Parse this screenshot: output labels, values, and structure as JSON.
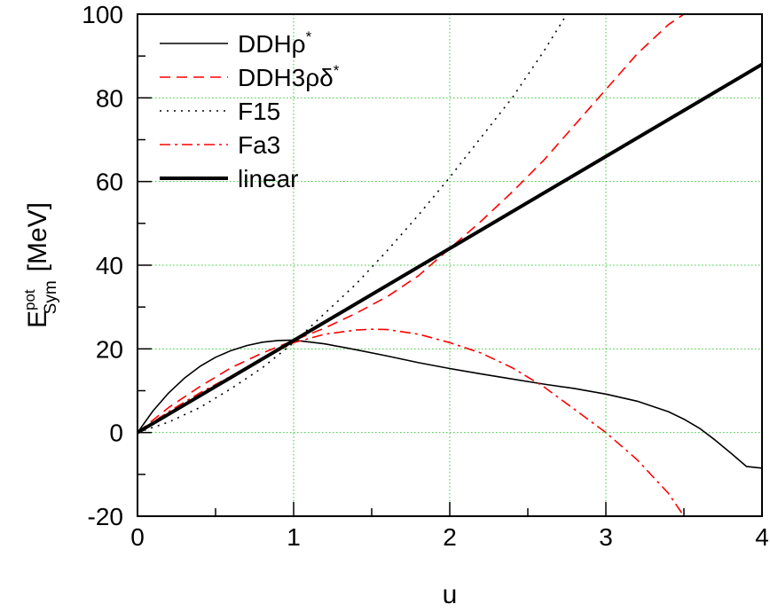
{
  "chart_data": {
    "type": "line",
    "title": "",
    "xlabel": "u",
    "ylabel": {
      "main": "E",
      "sup": "pot",
      "sub": "Sym",
      "unit": "[MeV]"
    },
    "xlim": [
      0,
      4
    ],
    "ylim": [
      -20,
      100
    ],
    "xticks": [
      0,
      1,
      2,
      3,
      4
    ],
    "xtick_labels": [
      "0",
      "1",
      "2",
      "3",
      "4"
    ],
    "yticks": [
      -20,
      0,
      20,
      40,
      60,
      80,
      100
    ],
    "ytick_labels": [
      "-20",
      "0",
      "20",
      "40",
      "60",
      "80",
      "100"
    ],
    "grid": true,
    "legend_position": "top-left",
    "series": [
      {
        "name": "DDHρ*",
        "legend_main": "DDHρ",
        "legend_sup": "*",
        "style": "solid",
        "width": 1.6,
        "color": "#000000",
        "x": [
          0,
          0.1,
          0.2,
          0.3,
          0.4,
          0.5,
          0.6,
          0.7,
          0.8,
          0.9,
          1.0,
          1.2,
          1.4,
          1.6,
          1.8,
          2.0,
          2.2,
          2.4,
          2.6,
          2.8,
          3.0,
          3.2,
          3.4,
          3.5,
          3.6,
          3.7,
          3.8,
          3.9,
          4.0
        ],
        "y": [
          0,
          5.2,
          9.5,
          13,
          15.8,
          18,
          19.6,
          20.8,
          21.6,
          22,
          22.1,
          21.2,
          19.8,
          18.3,
          16.7,
          15.3,
          14,
          12.8,
          11.6,
          10.5,
          9.2,
          7.5,
          5,
          3.2,
          1,
          -1.8,
          -4.9,
          -8.1,
          -8.5
        ]
      },
      {
        "name": "DDH3ρδ*",
        "legend_main": "DDH3ρδ",
        "legend_sup": "*",
        "style": "dashed",
        "width": 1.6,
        "color": "#ff0000",
        "x": [
          0,
          0.2,
          0.4,
          0.6,
          0.8,
          1.0,
          1.2,
          1.4,
          1.6,
          1.8,
          2.0,
          2.2,
          2.4,
          2.6,
          2.8,
          3.0,
          3.2,
          3.4,
          3.5
        ],
        "y": [
          0,
          6,
          11,
          15.5,
          19,
          22,
          25,
          28.5,
          32.5,
          37.5,
          44,
          50.5,
          57.5,
          65,
          73.5,
          82,
          90.5,
          97.5,
          100
        ]
      },
      {
        "name": "F15",
        "legend_main": "F15",
        "legend_sup": "",
        "style": "dotted",
        "width": 1.6,
        "color": "#000000",
        "x": [
          0,
          0.2,
          0.4,
          0.6,
          0.8,
          1.0,
          1.2,
          1.4,
          1.6,
          1.8,
          2.0,
          2.2,
          2.4,
          2.6,
          2.75
        ],
        "y": [
          0,
          2.5,
          6,
          10.5,
          15.5,
          21.5,
          28.5,
          35.5,
          43.5,
          52,
          61,
          70.5,
          80,
          91,
          100
        ]
      },
      {
        "name": "Fa3",
        "legend_main": "Fa3",
        "legend_sup": "",
        "style": "dashdot",
        "width": 1.6,
        "color": "#ff0000",
        "x": [
          0,
          0.2,
          0.4,
          0.6,
          0.8,
          1.0,
          1.2,
          1.4,
          1.5,
          1.6,
          1.8,
          2.0,
          2.2,
          2.4,
          2.6,
          2.8,
          3.0,
          3.2,
          3.4,
          3.5
        ],
        "y": [
          0,
          5,
          9.5,
          13.5,
          17.5,
          21.5,
          23.5,
          24.5,
          24.7,
          24.6,
          23.5,
          21.5,
          19,
          15.5,
          11,
          5.5,
          0,
          -6.5,
          -14.5,
          -20
        ]
      },
      {
        "name": "linear",
        "legend_main": "linear",
        "legend_sup": "",
        "style": "solid",
        "width": 4,
        "color": "#000000",
        "x": [
          0,
          4
        ],
        "y": [
          0,
          88
        ]
      }
    ]
  }
}
